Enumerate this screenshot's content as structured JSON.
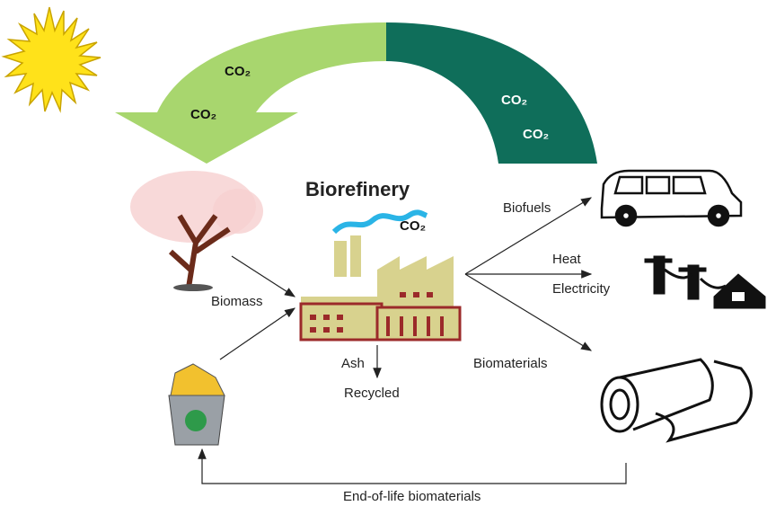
{
  "title": "Biorefinery",
  "co2_labels": [
    "CO₂",
    "CO₂",
    "CO₂",
    "CO₂",
    "CO₂"
  ],
  "input": "Biomass",
  "outputs": [
    "Biofuels",
    "Heat",
    "Electricity",
    "Biomaterials"
  ],
  "residue": {
    "ash": "Ash",
    "fate": "Recycled"
  },
  "loop": "End-of-life biomaterials"
}
